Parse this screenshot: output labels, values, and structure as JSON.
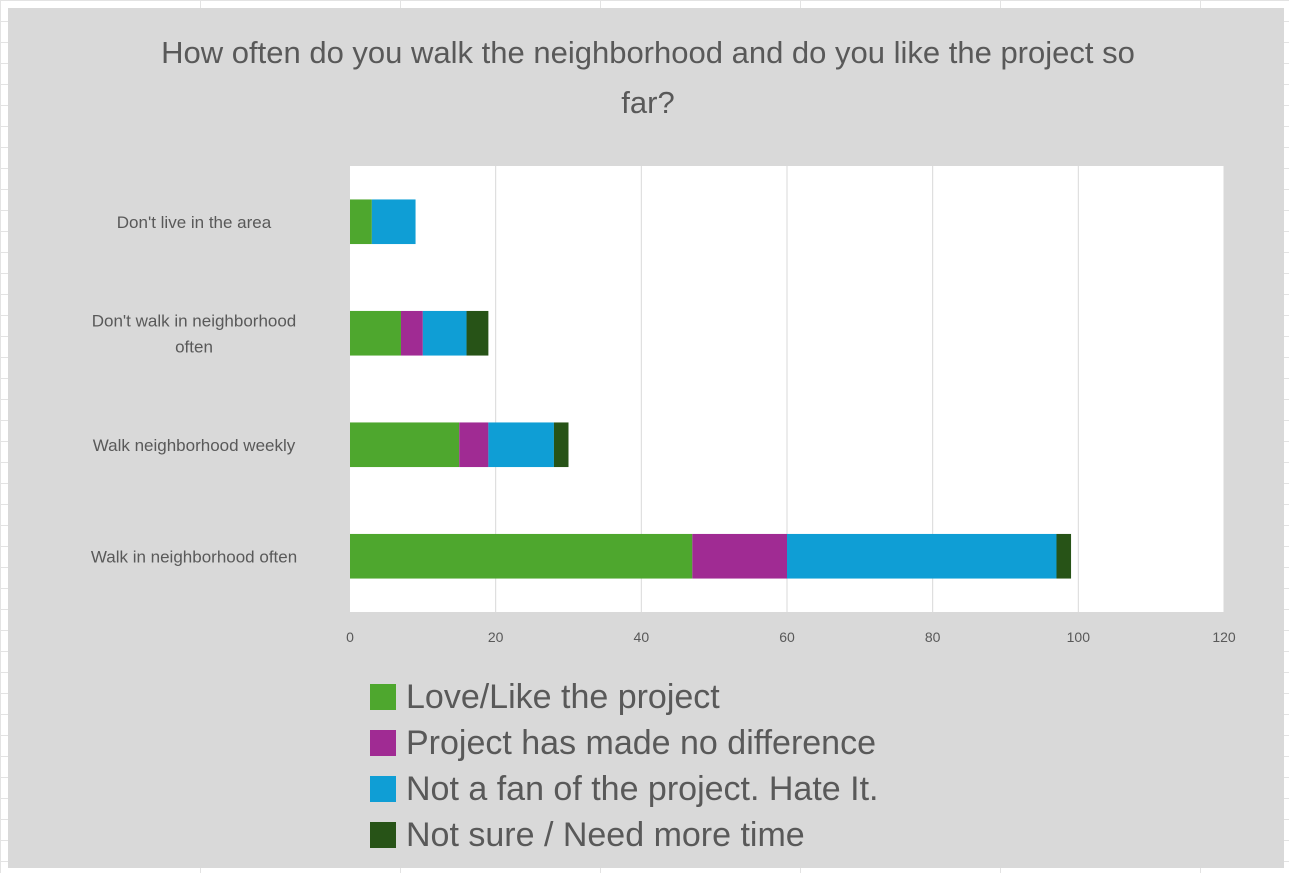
{
  "chart_data": {
    "type": "bar",
    "orientation": "horizontal",
    "stacked": true,
    "title": "How often do you walk the neighborhood and do you like the project so far?",
    "categories": [
      "Walk in neighborhood often",
      "Walk neighborhood weekly",
      "Don't walk in neighborhood often",
      "Don't live in the area"
    ],
    "series": [
      {
        "name": "Love/Like the project",
        "color": "#4ea72e",
        "values": [
          47,
          15,
          7,
          3
        ]
      },
      {
        "name": "Project has made no difference",
        "color": "#a02b93",
        "values": [
          13,
          4,
          3,
          0
        ]
      },
      {
        "name": "Not a fan of the project. Hate It.",
        "color": "#0f9ed5",
        "values": [
          37,
          9,
          6,
          6
        ]
      },
      {
        "name": "Not sure / Need more time",
        "color": "#275317",
        "values": [
          2,
          2,
          3,
          0
        ]
      }
    ],
    "xlim": [
      0,
      120
    ],
    "xticks": [
      "0",
      "20",
      "40",
      "60",
      "80",
      "100",
      "120"
    ],
    "grid": true,
    "legend_position": "bottom"
  }
}
